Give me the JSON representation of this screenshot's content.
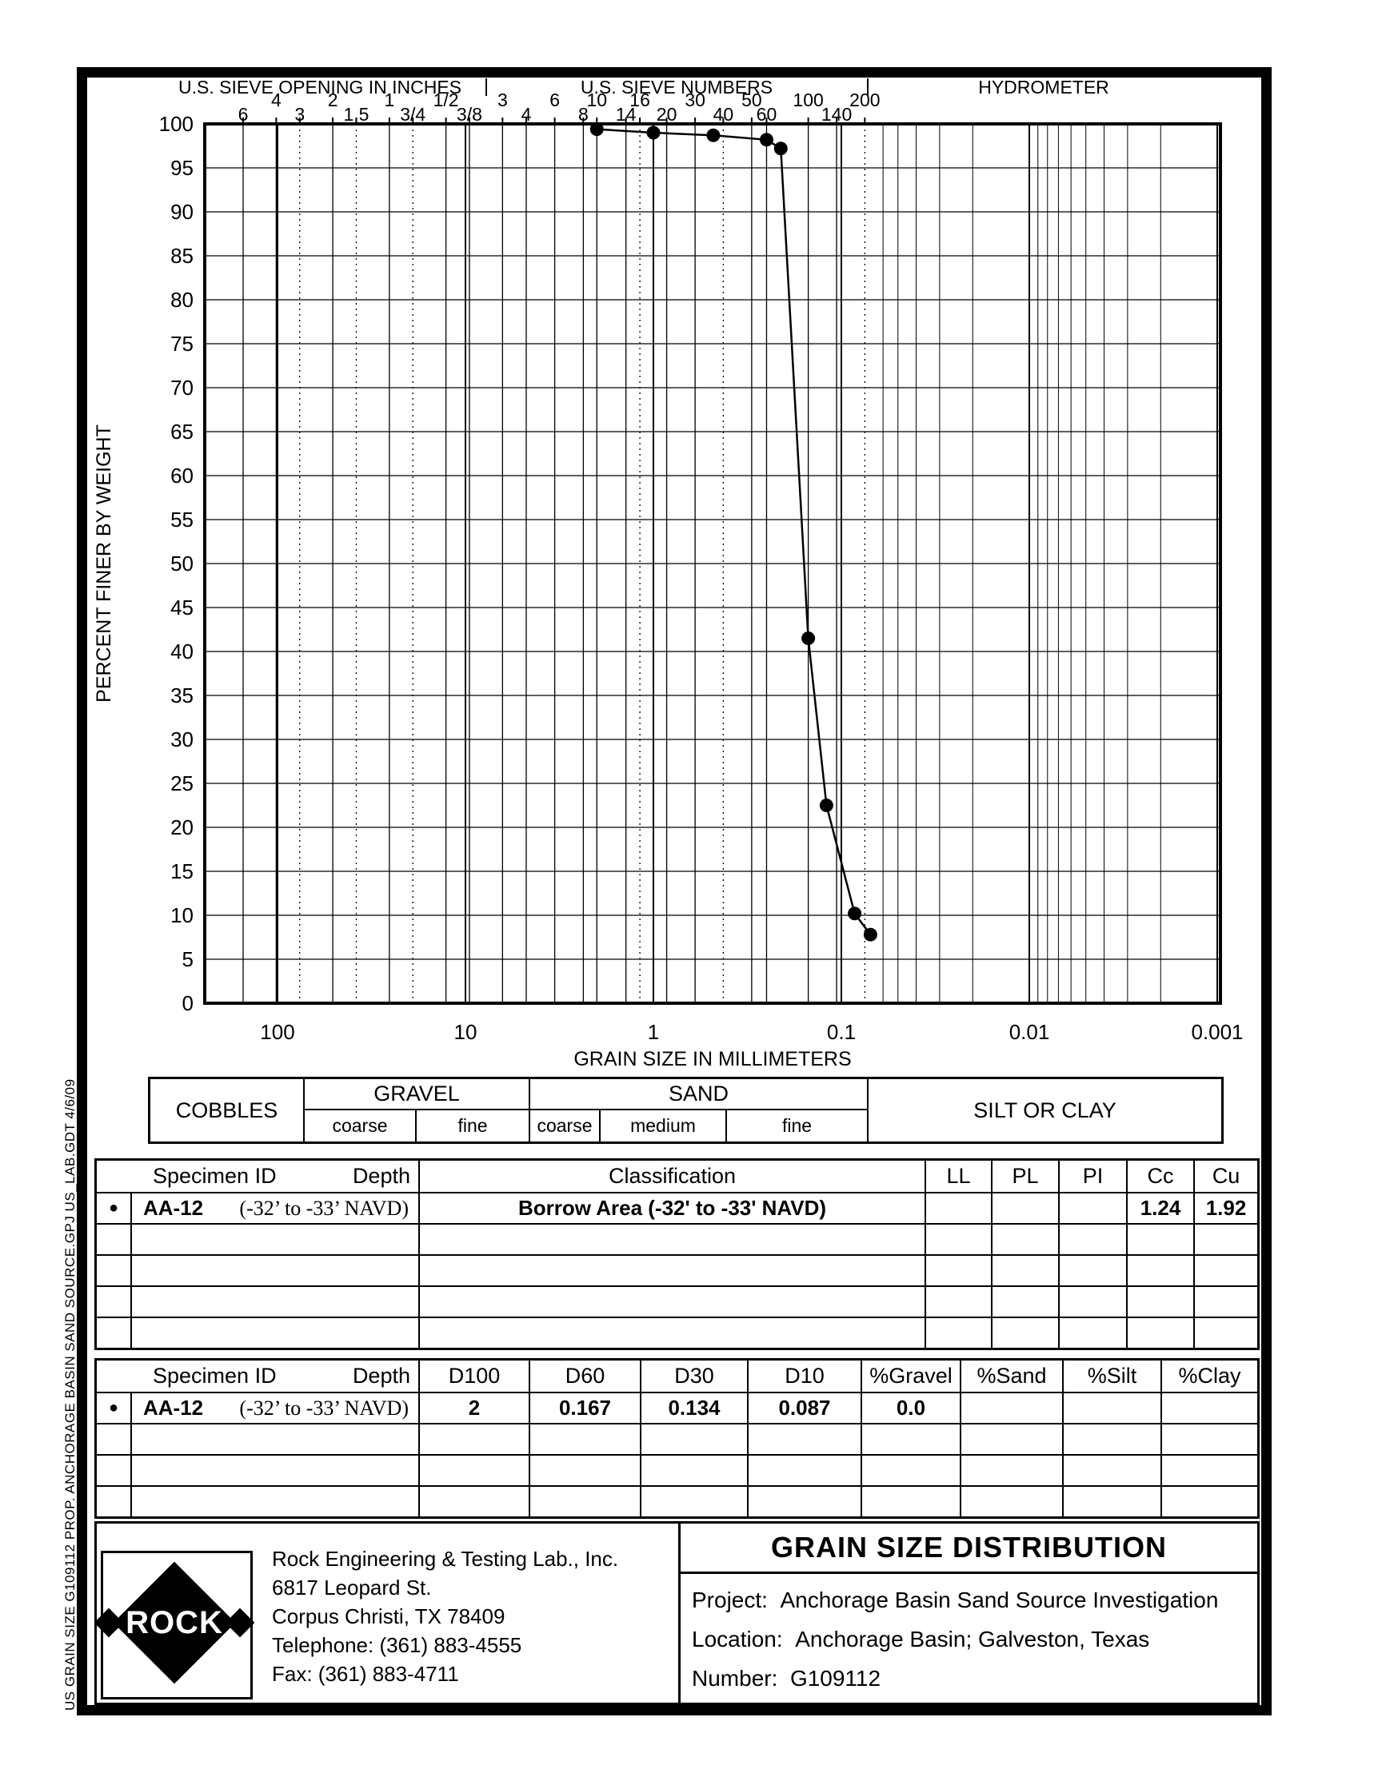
{
  "sidebar_text": "US GRAIN SIZE  G109112 PROP. ANCHORAGE BASIN SAND SOURCE.GPJ  US_LAB.GDT  4/6/09",
  "chart_data": {
    "type": "line",
    "top_sections": {
      "inches": "U.S. SIEVE OPENING IN INCHES",
      "numbers": "U.S. SIEVE NUMBERS",
      "hydrometer": "HYDROMETER"
    },
    "xlabel": "GRAIN SIZE IN MILLIMETERS",
    "ylabel": "PERCENT FINER BY WEIGHT",
    "x_scale": "log-descending",
    "ylim": [
      0,
      100
    ],
    "y_ticks": [
      100,
      95,
      90,
      85,
      80,
      75,
      70,
      65,
      60,
      55,
      50,
      45,
      40,
      35,
      30,
      25,
      20,
      15,
      10,
      5,
      0
    ],
    "x_ticks": [
      {
        "label": "100",
        "mm": 100
      },
      {
        "label": "10",
        "mm": 10
      },
      {
        "label": "1",
        "mm": 1
      },
      {
        "label": "0.1",
        "mm": 0.1
      },
      {
        "label": "0.01",
        "mm": 0.01
      },
      {
        "label": "0.001",
        "mm": 0.001
      }
    ],
    "sieve_inches": [
      {
        "label": "6",
        "mm": 152.4,
        "row": "lo"
      },
      {
        "label": "4",
        "mm": 101.6,
        "row": "hi"
      },
      {
        "label": "3",
        "mm": 76.2,
        "row": "lo",
        "dotted": true
      },
      {
        "label": "2",
        "mm": 50.8,
        "row": "hi"
      },
      {
        "label": "1.5",
        "mm": 38.1,
        "row": "lo",
        "dotted": true
      },
      {
        "label": "1",
        "mm": 25.4,
        "row": "hi"
      },
      {
        "label": "3/4",
        "mm": 19.05,
        "row": "lo",
        "dotted": true
      },
      {
        "label": "1/2",
        "mm": 12.7,
        "row": "hi"
      },
      {
        "label": "3/8",
        "mm": 9.53,
        "row": "lo"
      }
    ],
    "sieve_numbers": [
      {
        "label": "3",
        "mm": 6.35,
        "row": "hi"
      },
      {
        "label": "4",
        "mm": 4.75,
        "row": "lo"
      },
      {
        "label": "6",
        "mm": 3.35,
        "row": "hi"
      },
      {
        "label": "8",
        "mm": 2.36,
        "row": "lo"
      },
      {
        "label": "10",
        "mm": 2.0,
        "row": "hi"
      },
      {
        "label": "14",
        "mm": 1.4,
        "row": "lo"
      },
      {
        "label": "16",
        "mm": 1.18,
        "row": "hi",
        "dotted": true
      },
      {
        "label": "20",
        "mm": 0.85,
        "row": "lo"
      },
      {
        "label": "30",
        "mm": 0.6,
        "row": "hi"
      },
      {
        "label": "40",
        "mm": 0.425,
        "row": "lo",
        "dotted": true
      },
      {
        "label": "50",
        "mm": 0.3,
        "row": "hi"
      },
      {
        "label": "60",
        "mm": 0.25,
        "row": "lo"
      },
      {
        "label": "100",
        "mm": 0.15,
        "row": "hi"
      },
      {
        "label": "140",
        "mm": 0.106,
        "row": "lo"
      },
      {
        "label": "200",
        "mm": 0.075,
        "row": "hi",
        "dotted": true
      }
    ],
    "series": [
      {
        "name": "AA-12 (-32' to -33' NAVD)",
        "marker": "filled-circle",
        "points_mm_percent": [
          [
            2.0,
            99.4
          ],
          [
            1.0,
            99.0
          ],
          [
            0.48,
            98.7
          ],
          [
            0.25,
            98.2
          ],
          [
            0.21,
            97.2
          ],
          [
            0.15,
            41.5
          ],
          [
            0.12,
            22.5
          ],
          [
            0.085,
            10.2
          ],
          [
            0.07,
            7.8
          ]
        ]
      }
    ]
  },
  "bands": {
    "cobbles": "COBBLES",
    "gravel": "GRAVEL",
    "gravel_subs": [
      "coarse",
      "fine"
    ],
    "sand": "SAND",
    "sand_subs": [
      "coarse",
      "medium",
      "fine"
    ],
    "silt_or_clay": "SILT OR CLAY"
  },
  "classification_table": {
    "headers": {
      "specimen_id": "Specimen ID",
      "depth": "Depth",
      "classification": "Classification",
      "ll": "LL",
      "pl": "PL",
      "pi": "PI",
      "cc": "Cc",
      "cu": "Cu"
    },
    "row": {
      "marker": "●",
      "specimen_id": "AA-12",
      "depth": "(-32’ to -33’ NAVD)",
      "classification": "Borrow Area (-32' to -33' NAVD)",
      "ll": "",
      "pl": "",
      "pi": "",
      "cc": "1.24",
      "cu": "1.92"
    }
  },
  "gradation_table": {
    "headers": {
      "specimen_id": "Specimen ID",
      "depth": "Depth",
      "d100": "D100",
      "d60": "D60",
      "d30": "D30",
      "d10": "D10",
      "gravel": "%Gravel",
      "sand": "%Sand",
      "silt": "%Silt",
      "clay": "%Clay"
    },
    "row": {
      "marker": "●",
      "specimen_id": "AA-12",
      "depth": "(-32’ to -33’ NAVD)",
      "d100": "2",
      "d60": "0.167",
      "d30": "0.134",
      "d10": "0.087",
      "gravel": "0.0",
      "sand": "",
      "silt": "",
      "clay": ""
    }
  },
  "footer": {
    "logo_text": "ROCK",
    "company_lines": [
      "Rock Engineering & Testing Lab., Inc.",
      "6817 Leopard St.",
      "Corpus Christi, TX 78409",
      "Telephone:  (361) 883-4555",
      "Fax:  (361) 883-4711"
    ],
    "title": "GRAIN SIZE DISTRIBUTION",
    "project_label": "Project:",
    "project_value": "Anchorage Basin Sand Source Investigation",
    "location_label": "Location:",
    "location_value": "Anchorage Basin; Galveston, Texas",
    "number_label": "Number:",
    "number_value": "G109112"
  }
}
